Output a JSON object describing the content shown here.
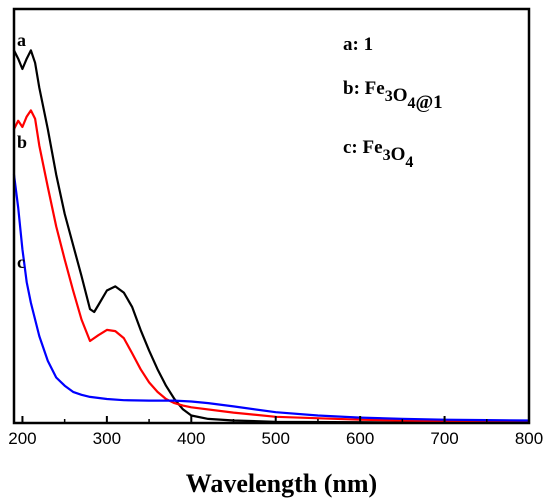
{
  "chart_data": {
    "type": "line",
    "xlabel": "Wavelength (nm)",
    "ylabel": "",
    "xlim": [
      190,
      800
    ],
    "ylim": [
      0,
      1.0
    ],
    "xticks": [
      "200",
      "300",
      "400",
      "500",
      "600",
      "700",
      "800"
    ],
    "grid": false,
    "legend_position": "top-right",
    "legend": [
      {
        "key": "a:",
        "label": "1",
        "parts": [
          {
            "t": "1",
            "sub": false
          }
        ]
      },
      {
        "key": "b:",
        "label": "Fe3O4@1",
        "parts": [
          {
            "t": "Fe",
            "sub": false
          },
          {
            "t": "3",
            "sub": true
          },
          {
            "t": "O",
            "sub": false
          },
          {
            "t": "4",
            "sub": true
          },
          {
            "t": "@1",
            "sub": false
          }
        ]
      },
      {
        "key": "c:",
        "label": "Fe3O4",
        "parts": [
          {
            "t": "Fe",
            "sub": false
          },
          {
            "t": "3",
            "sub": true
          },
          {
            "t": "O",
            "sub": false
          },
          {
            "t": "4",
            "sub": true
          }
        ]
      }
    ],
    "series": [
      {
        "name": "a",
        "color": "#000000",
        "x": [
          190,
          195,
          200,
          205,
          210,
          215,
          220,
          230,
          240,
          250,
          260,
          270,
          280,
          285,
          290,
          300,
          310,
          320,
          330,
          340,
          350,
          360,
          370,
          380,
          390,
          400,
          420,
          450,
          500,
          600,
          700,
          800
        ],
        "y": [
          0.9,
          0.88,
          0.855,
          0.88,
          0.9,
          0.87,
          0.81,
          0.71,
          0.6,
          0.505,
          0.43,
          0.355,
          0.275,
          0.268,
          0.285,
          0.32,
          0.33,
          0.315,
          0.28,
          0.225,
          0.175,
          0.13,
          0.09,
          0.058,
          0.033,
          0.018,
          0.01,
          0.006,
          0.003,
          0.002,
          0.001,
          0.001
        ]
      },
      {
        "name": "b",
        "color": "#ff0000",
        "x": [
          190,
          195,
          200,
          205,
          210,
          215,
          220,
          230,
          240,
          250,
          260,
          270,
          280,
          290,
          300,
          310,
          320,
          330,
          340,
          350,
          360,
          370,
          380,
          390,
          400,
          450,
          500,
          600,
          700,
          800
        ],
        "y": [
          0.71,
          0.73,
          0.715,
          0.74,
          0.755,
          0.735,
          0.67,
          0.57,
          0.475,
          0.395,
          0.32,
          0.25,
          0.198,
          0.212,
          0.225,
          0.222,
          0.205,
          0.168,
          0.13,
          0.098,
          0.075,
          0.058,
          0.048,
          0.042,
          0.038,
          0.025,
          0.015,
          0.008,
          0.004,
          0.002
        ]
      },
      {
        "name": "c",
        "color": "#0000ff",
        "x": [
          190,
          195,
          200,
          205,
          210,
          220,
          230,
          240,
          250,
          260,
          270,
          280,
          300,
          320,
          350,
          380,
          400,
          420,
          450,
          500,
          550,
          600,
          650,
          700,
          750,
          800
        ],
        "y": [
          0.6,
          0.52,
          0.42,
          0.34,
          0.29,
          0.21,
          0.15,
          0.11,
          0.09,
          0.075,
          0.068,
          0.063,
          0.058,
          0.055,
          0.054,
          0.054,
          0.052,
          0.048,
          0.04,
          0.026,
          0.018,
          0.013,
          0.01,
          0.008,
          0.007,
          0.006
        ]
      }
    ]
  }
}
